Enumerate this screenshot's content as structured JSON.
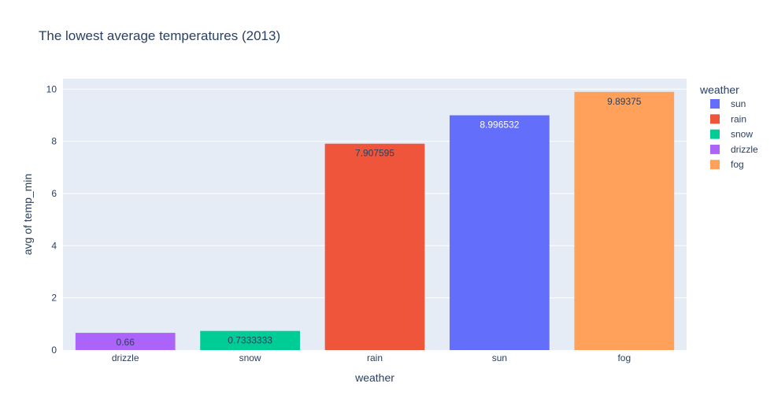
{
  "chart_data": {
    "type": "bar",
    "title": "The lowest average temperatures (2013)",
    "xlabel": "weather",
    "ylabel": "avg of temp_min",
    "categories": [
      "drizzle",
      "snow",
      "rain",
      "sun",
      "fog"
    ],
    "values": [
      0.66,
      0.7333333,
      7.907595,
      8.996532,
      9.89375
    ],
    "value_labels": [
      "0.66",
      "0.7333333",
      "7.907595",
      "8.996532",
      "9.89375"
    ],
    "ylim": [
      0,
      10.4
    ],
    "yticks": [
      0,
      2,
      4,
      6,
      8,
      10
    ],
    "grid": true,
    "legend": {
      "title": "weather",
      "placement": "right",
      "items": [
        {
          "name": "sun",
          "color": "#636efa"
        },
        {
          "name": "rain",
          "color": "#ef553b"
        },
        {
          "name": "snow",
          "color": "#00cc96"
        },
        {
          "name": "drizzle",
          "color": "#ab63fa"
        },
        {
          "name": "fog",
          "color": "#ffa15a"
        }
      ]
    },
    "plot_background": "#e5ecf6"
  }
}
